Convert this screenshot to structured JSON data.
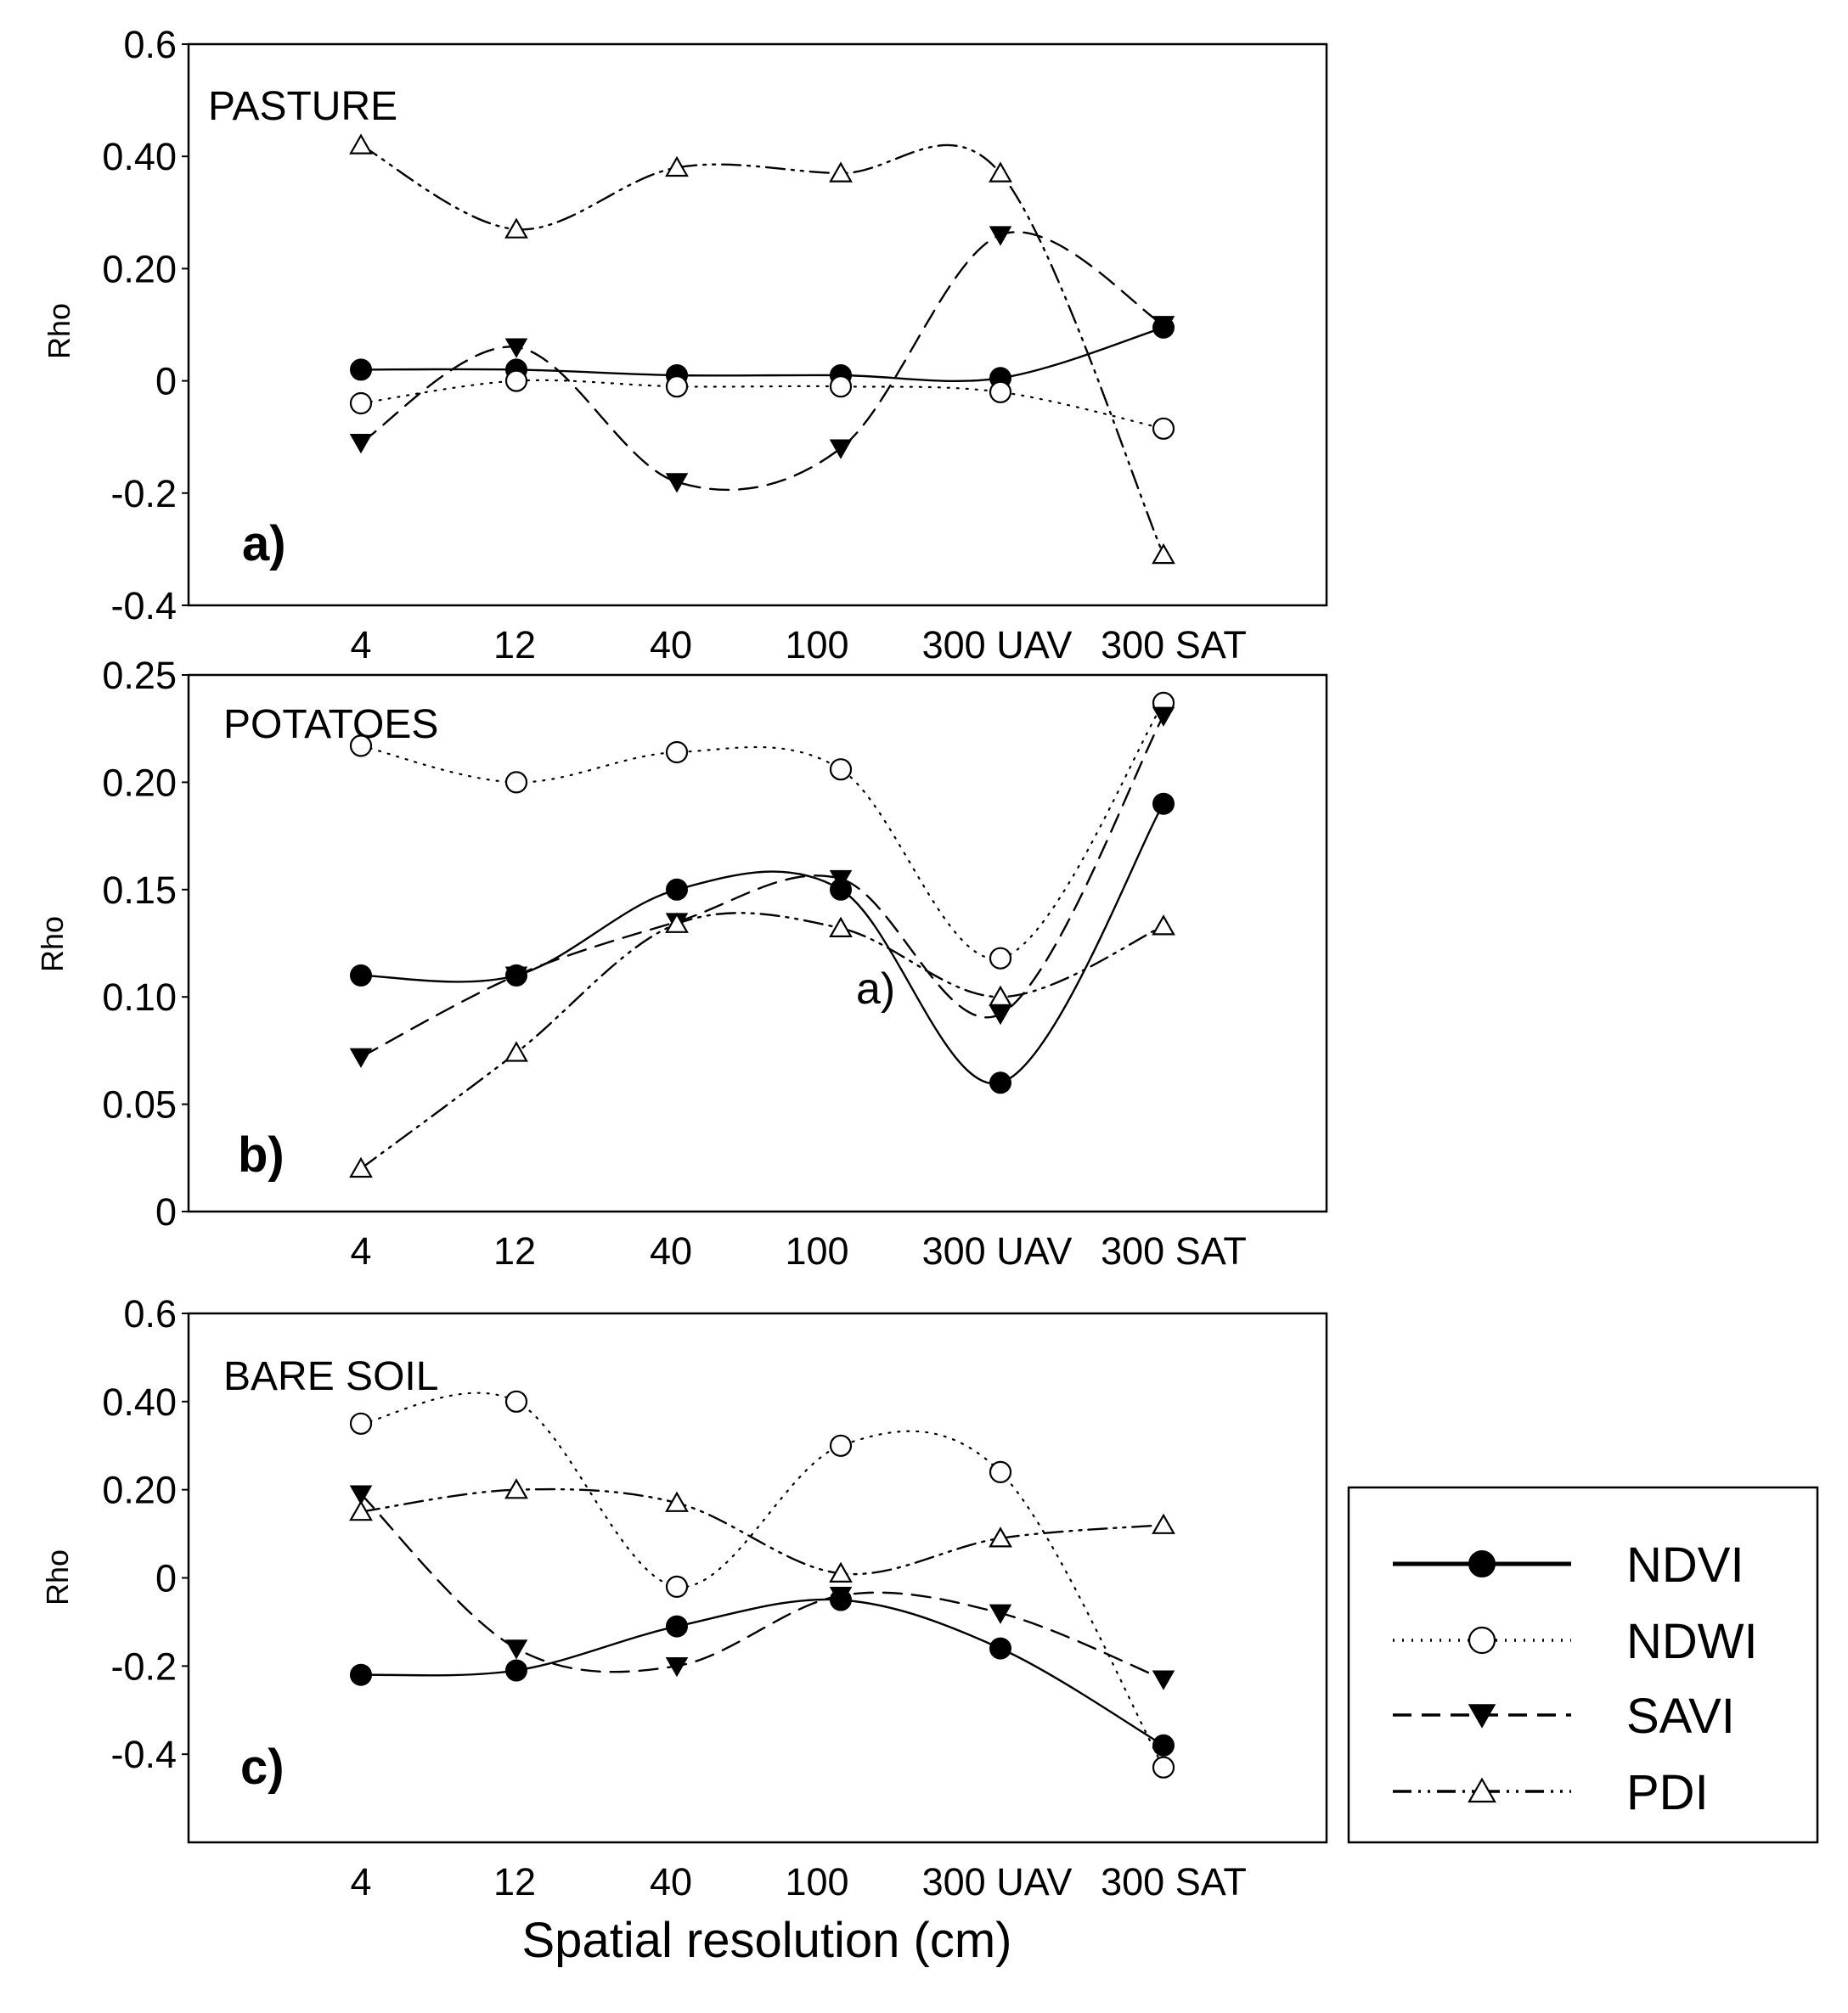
{
  "figure": {
    "x_axis_label": "Spatial resolution (cm)",
    "y_axis_label": "Rho",
    "stray_label": "a)"
  },
  "legend": [
    {
      "name": "NDVI",
      "style": "solid",
      "marker": "filled-circle"
    },
    {
      "name": "NDWI",
      "style": "dotted",
      "marker": "open-circle"
    },
    {
      "name": "SAVI",
      "style": "dashed",
      "marker": "filled-triangle-down"
    },
    {
      "name": "PDI",
      "style": "dash-dot-dot",
      "marker": "open-triangle-up"
    }
  ],
  "chart_data": [
    {
      "type": "line",
      "title": "PASTURE",
      "panel_label": "a)",
      "xlabel": "",
      "ylabel": "Rho",
      "categories": [
        "4",
        "12",
        "40",
        "100",
        "300 UAV",
        "300 SAT"
      ],
      "ylim": [
        -0.4,
        0.6
      ],
      "yticks": [
        {
          "value": 0.6,
          "label": "0.6"
        },
        {
          "value": 0.4,
          "label": "0.40"
        },
        {
          "value": 0.2,
          "label": "0.20"
        },
        {
          "value": 0.0,
          "label": "0"
        },
        {
          "value": -0.2,
          "label": "-0.2"
        },
        {
          "value": -0.4,
          "label": "-0.4"
        }
      ],
      "series": [
        {
          "name": "NDVI",
          "values": [
            0.02,
            0.02,
            0.01,
            0.01,
            0.005,
            0.095
          ]
        },
        {
          "name": "NDWI",
          "values": [
            -0.04,
            0.0,
            -0.01,
            -0.01,
            -0.02,
            -0.085
          ]
        },
        {
          "name": "SAVI",
          "values": [
            -0.11,
            0.06,
            -0.18,
            -0.12,
            0.26,
            0.1
          ]
        },
        {
          "name": "PDI",
          "values": [
            0.42,
            0.27,
            0.38,
            0.37,
            0.37,
            -0.31
          ]
        }
      ]
    },
    {
      "type": "line",
      "title": "POTATOES",
      "panel_label": "b)",
      "xlabel": "",
      "ylabel": "Rho",
      "categories": [
        "4",
        "12",
        "40",
        "100",
        "300 UAV",
        "300 SAT"
      ],
      "ylim": [
        0,
        0.25
      ],
      "yticks": [
        {
          "value": 0.25,
          "label": "0.25"
        },
        {
          "value": 0.2,
          "label": "0.20"
        },
        {
          "value": 0.15,
          "label": "0.15"
        },
        {
          "value": 0.1,
          "label": "0.10"
        },
        {
          "value": 0.05,
          "label": "0.05"
        },
        {
          "value": 0.0,
          "label": "0"
        }
      ],
      "series": [
        {
          "name": "NDVI",
          "values": [
            0.11,
            0.11,
            0.15,
            0.15,
            0.06,
            0.19
          ]
        },
        {
          "name": "NDWI",
          "values": [
            0.217,
            0.2,
            0.214,
            0.206,
            0.118,
            0.237
          ]
        },
        {
          "name": "SAVI",
          "values": [
            0.072,
            0.11,
            0.135,
            0.155,
            0.092,
            0.231
          ]
        },
        {
          "name": "PDI",
          "values": [
            0.02,
            0.074,
            0.134,
            0.132,
            0.1,
            0.133
          ]
        }
      ]
    },
    {
      "type": "line",
      "title": "BARE SOIL",
      "panel_label": "c)",
      "xlabel": "Spatial resolution (cm)",
      "ylabel": "Rho",
      "categories": [
        "4",
        "12",
        "40",
        "100",
        "300 UAV",
        "300 SAT"
      ],
      "ylim": [
        -0.6,
        0.6
      ],
      "yticks": [
        {
          "value": 0.6,
          "label": "0.6"
        },
        {
          "value": 0.4,
          "label": "0.40"
        },
        {
          "value": 0.2,
          "label": "0.20"
        },
        {
          "value": 0.0,
          "label": "0"
        },
        {
          "value": -0.2,
          "label": "-0.2"
        },
        {
          "value": -0.4,
          "label": "-0.4"
        }
      ],
      "series": [
        {
          "name": "NDVI",
          "values": [
            -0.22,
            -0.21,
            -0.11,
            -0.05,
            -0.16,
            -0.38
          ]
        },
        {
          "name": "NDWI",
          "values": [
            0.35,
            0.4,
            -0.02,
            0.3,
            0.24,
            -0.43
          ]
        },
        {
          "name": "SAVI",
          "values": [
            0.19,
            -0.16,
            -0.2,
            -0.04,
            -0.08,
            -0.23
          ]
        },
        {
          "name": "PDI",
          "values": [
            0.15,
            0.2,
            0.17,
            0.01,
            0.09,
            0.12
          ]
        }
      ]
    }
  ]
}
